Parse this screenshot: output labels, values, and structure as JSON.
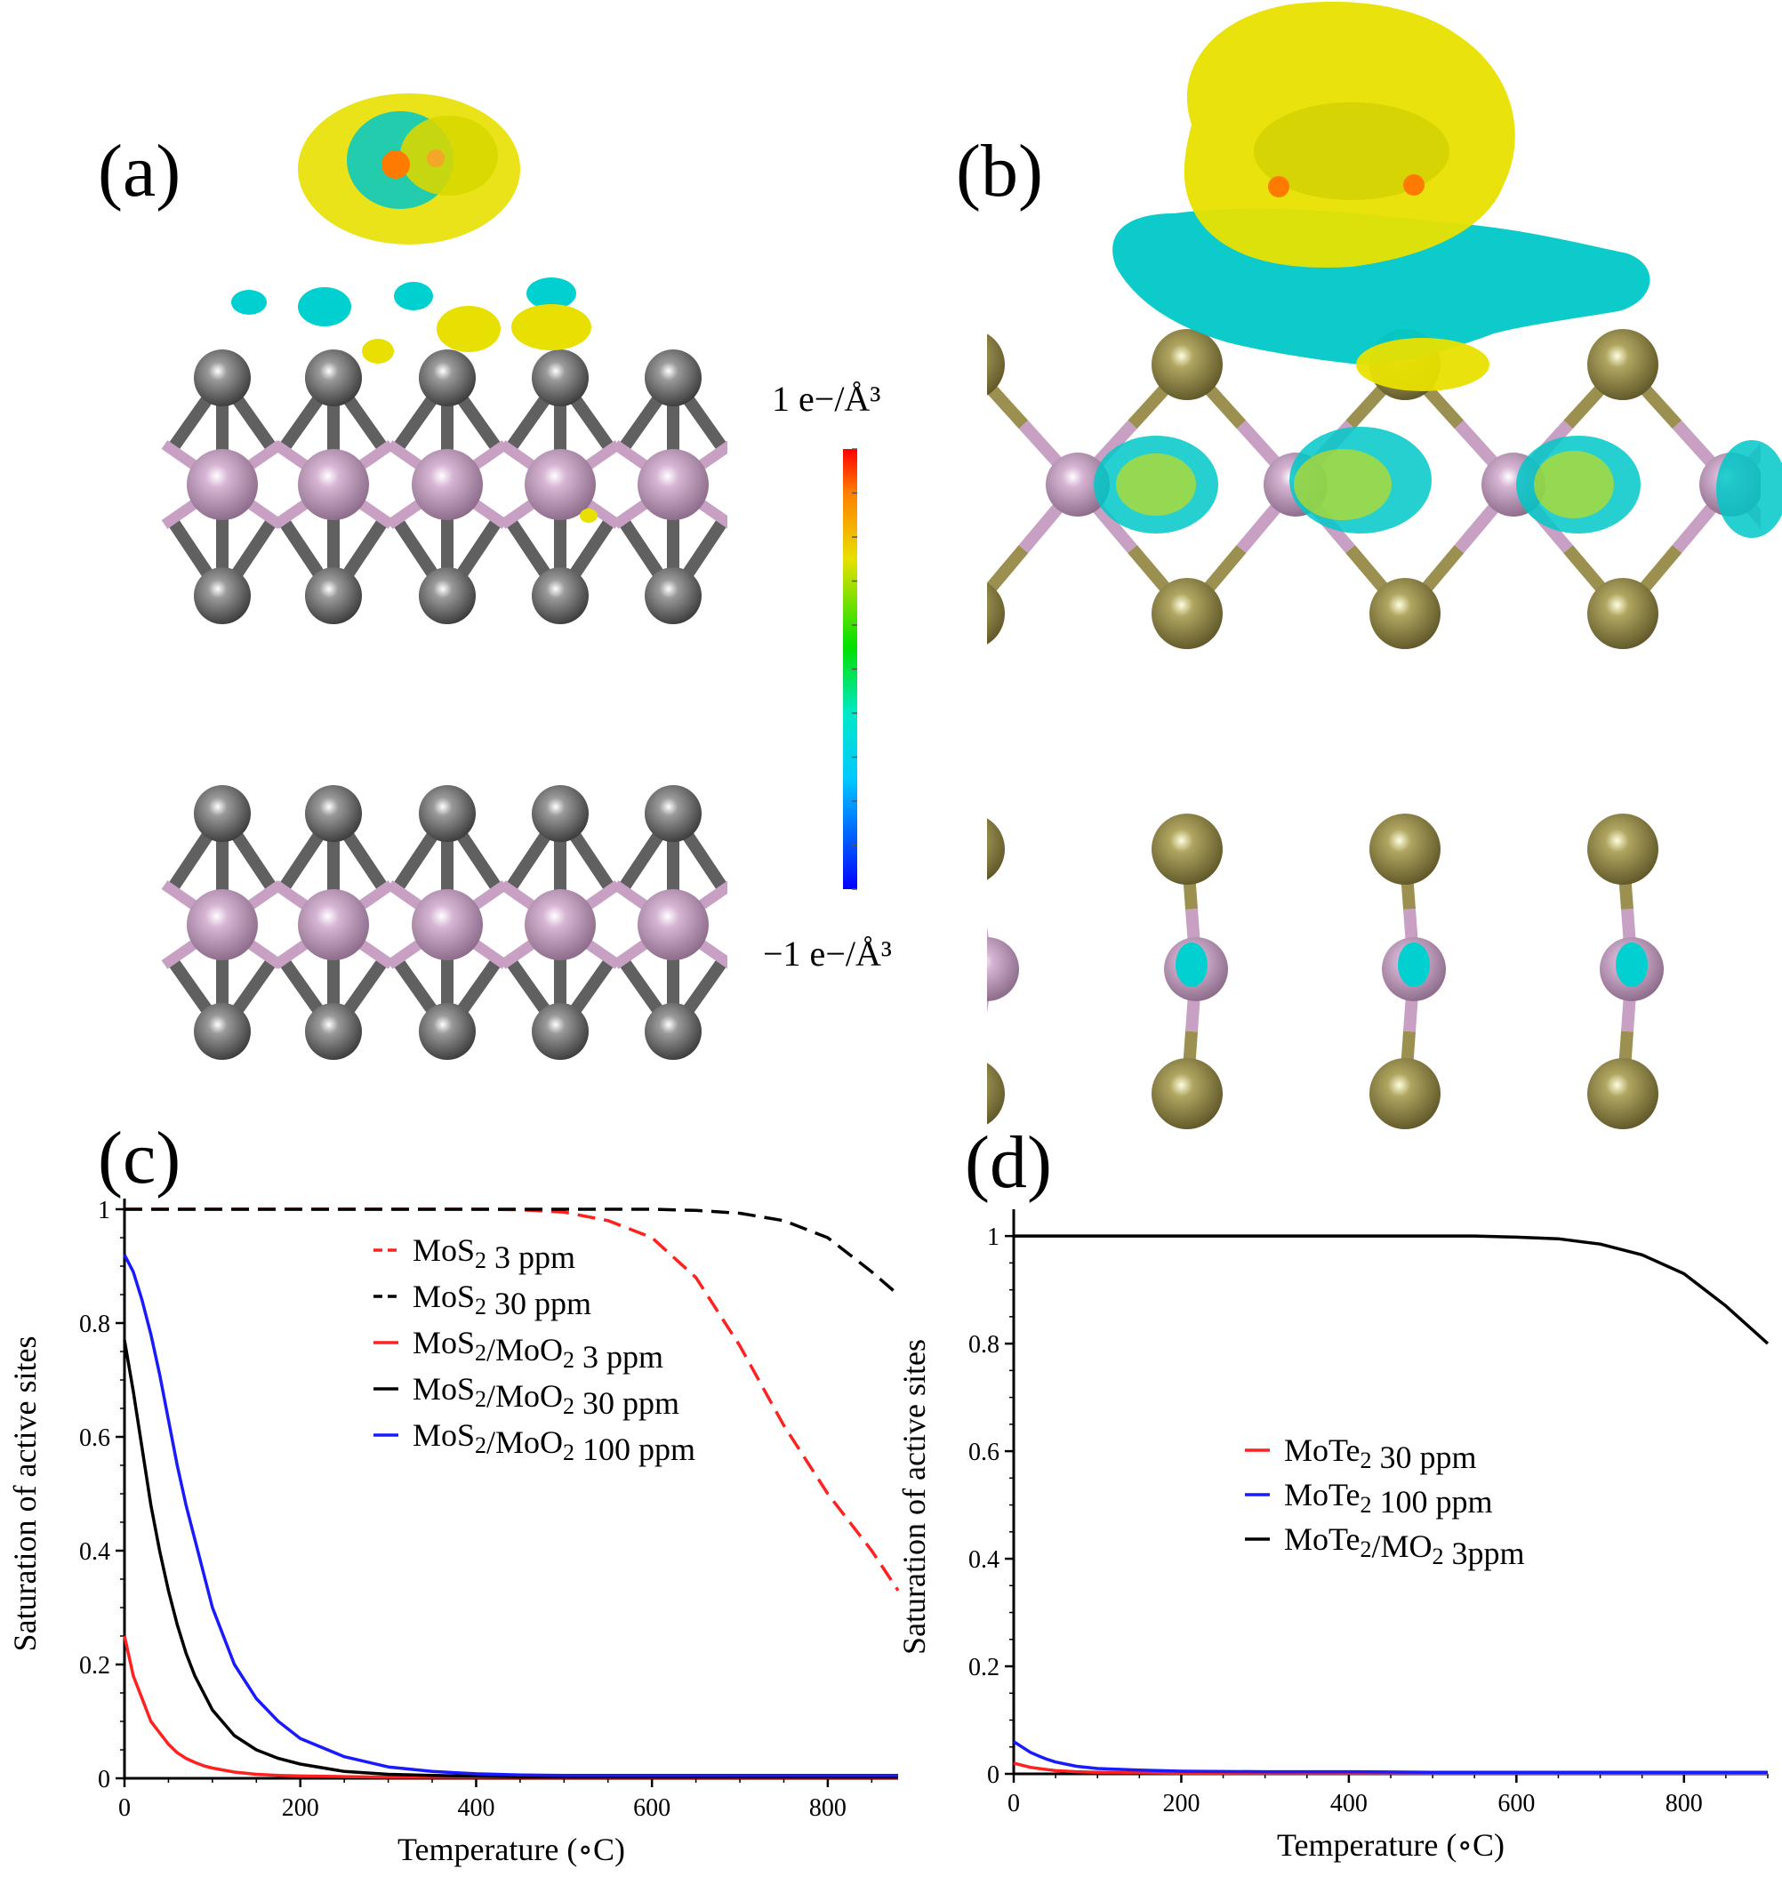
{
  "panels": {
    "a": "(a)",
    "b": "(b)",
    "c": "(c)",
    "d": "(d)"
  },
  "colorbar": {
    "max_label": "1  e−/Å³",
    "min_label": "−1  e−/Å³",
    "colors": [
      "#0000ff",
      "#00b0ff",
      "#00e8e0",
      "#00e000",
      "#e0e000",
      "#ff8000",
      "#ff0000"
    ]
  },
  "structures": {
    "mos2_chalcogen_color": "#606060",
    "mote2_chalcogen_color": "#9c9050",
    "metal_color": "#c7a0c4",
    "density_positive_color": "#f0e000",
    "density_negative_color": "#00c8d0"
  },
  "chart_data": [
    {
      "type": "line",
      "panel": "(c)",
      "xlabel": "Temperature (∘C)",
      "ylabel": "Saturation of active sites",
      "xlim": [
        0,
        880
      ],
      "ylim": [
        0,
        1
      ],
      "xticks": [
        0,
        200,
        400,
        600,
        800
      ],
      "yticks": [
        0,
        0.2,
        0.4,
        0.6,
        0.8,
        1
      ],
      "ytick_labels": [
        "0",
        "0.2",
        "0.4",
        "0.6",
        "0.8",
        "1"
      ],
      "legend_position": "center-right",
      "x": [
        0,
        10,
        20,
        30,
        40,
        50,
        60,
        70,
        80,
        90,
        100,
        125,
        150,
        175,
        200,
        250,
        300,
        350,
        400,
        450,
        500,
        550,
        600,
        650,
        700,
        750,
        800,
        850,
        880
      ],
      "series": [
        {
          "name": "MoS₂ 3 ppm",
          "color": "#ff2020",
          "dash": "dash",
          "values": [
            1,
            1,
            1,
            1,
            1,
            1,
            1,
            1,
            1,
            1,
            1,
            1,
            1,
            1,
            1,
            1,
            1,
            1,
            1,
            0.999,
            0.995,
            0.98,
            0.95,
            0.88,
            0.76,
            0.62,
            0.5,
            0.4,
            0.33
          ]
        },
        {
          "name": "MoS₂ 30 ppm",
          "color": "#000000",
          "dash": "dash",
          "values": [
            1,
            1,
            1,
            1,
            1,
            1,
            1,
            1,
            1,
            1,
            1,
            1,
            1,
            1,
            1,
            1,
            1,
            1,
            1,
            1,
            1,
            1,
            1,
            0.998,
            0.993,
            0.98,
            0.95,
            0.89,
            0.85
          ]
        },
        {
          "name": "MoS₂/MoO₂ 3 ppm",
          "color": "#ff2020",
          "dash": "solid",
          "values": [
            0.25,
            0.18,
            0.14,
            0.1,
            0.08,
            0.06,
            0.045,
            0.035,
            0.028,
            0.022,
            0.018,
            0.011,
            0.007,
            0.005,
            0.004,
            0.003,
            0.002,
            0.002,
            0.002,
            0.002,
            0.002,
            0.002,
            0.002,
            0.002,
            0.002,
            0.002,
            0.002,
            0.002,
            0.002
          ]
        },
        {
          "name": "MoS₂/MoO₂ 30 ppm",
          "color": "#000000",
          "dash": "solid",
          "values": [
            0.77,
            0.68,
            0.58,
            0.48,
            0.4,
            0.33,
            0.27,
            0.22,
            0.18,
            0.15,
            0.12,
            0.075,
            0.05,
            0.035,
            0.025,
            0.012,
            0.007,
            0.005,
            0.004,
            0.003,
            0.003,
            0.003,
            0.003,
            0.003,
            0.003,
            0.003,
            0.003,
            0.003,
            0.003
          ]
        },
        {
          "name": "MoS₂/MoO₂ 100 ppm",
          "color": "#1a1aff",
          "dash": "solid",
          "values": [
            0.92,
            0.89,
            0.84,
            0.78,
            0.71,
            0.63,
            0.55,
            0.48,
            0.42,
            0.36,
            0.3,
            0.2,
            0.14,
            0.1,
            0.07,
            0.038,
            0.02,
            0.012,
            0.008,
            0.006,
            0.005,
            0.005,
            0.005,
            0.005,
            0.005,
            0.005,
            0.005,
            0.005,
            0.005
          ]
        }
      ]
    },
    {
      "type": "line",
      "panel": "(d)",
      "xlabel": "Temperature (∘C)",
      "ylabel": "Saturation of active sites",
      "xlim": [
        0,
        900
      ],
      "ylim": [
        0,
        1.03
      ],
      "xticks": [
        0,
        200,
        400,
        600,
        800
      ],
      "yticks": [
        0,
        0.2,
        0.4,
        0.6,
        0.8,
        1
      ],
      "ytick_labels": [
        "0",
        "0.2",
        "0.4",
        "0.6",
        "0.8",
        "1"
      ],
      "legend_position": "center-right",
      "x": [
        0,
        10,
        20,
        30,
        40,
        50,
        75,
        100,
        150,
        200,
        300,
        400,
        500,
        550,
        600,
        650,
        700,
        750,
        800,
        850,
        900
      ],
      "series": [
        {
          "name": "MoTe₂ 30 ppm",
          "color": "#ff2020",
          "dash": "solid",
          "values": [
            0.02,
            0.016,
            0.012,
            0.01,
            0.008,
            0.006,
            0.004,
            0.003,
            0.002,
            0.001,
            0.001,
            0.001,
            0.001,
            0.001,
            0.001,
            0.001,
            0.001,
            0.001,
            0.001,
            0.001,
            0.001
          ]
        },
        {
          "name": "MoTe₂ 100 ppm",
          "color": "#1a1aff",
          "dash": "solid",
          "values": [
            0.06,
            0.05,
            0.04,
            0.033,
            0.027,
            0.022,
            0.014,
            0.01,
            0.007,
            0.005,
            0.004,
            0.004,
            0.003,
            0.003,
            0.003,
            0.003,
            0.003,
            0.003,
            0.003,
            0.003,
            0.003
          ]
        },
        {
          "name": "MoTe₂/MO₂ 3ppm",
          "color": "#000000",
          "dash": "solid",
          "values": [
            1,
            1,
            1,
            1,
            1,
            1,
            1,
            1,
            1,
            1,
            1,
            1,
            1,
            1,
            0.998,
            0.995,
            0.985,
            0.965,
            0.93,
            0.87,
            0.8
          ]
        }
      ]
    }
  ]
}
